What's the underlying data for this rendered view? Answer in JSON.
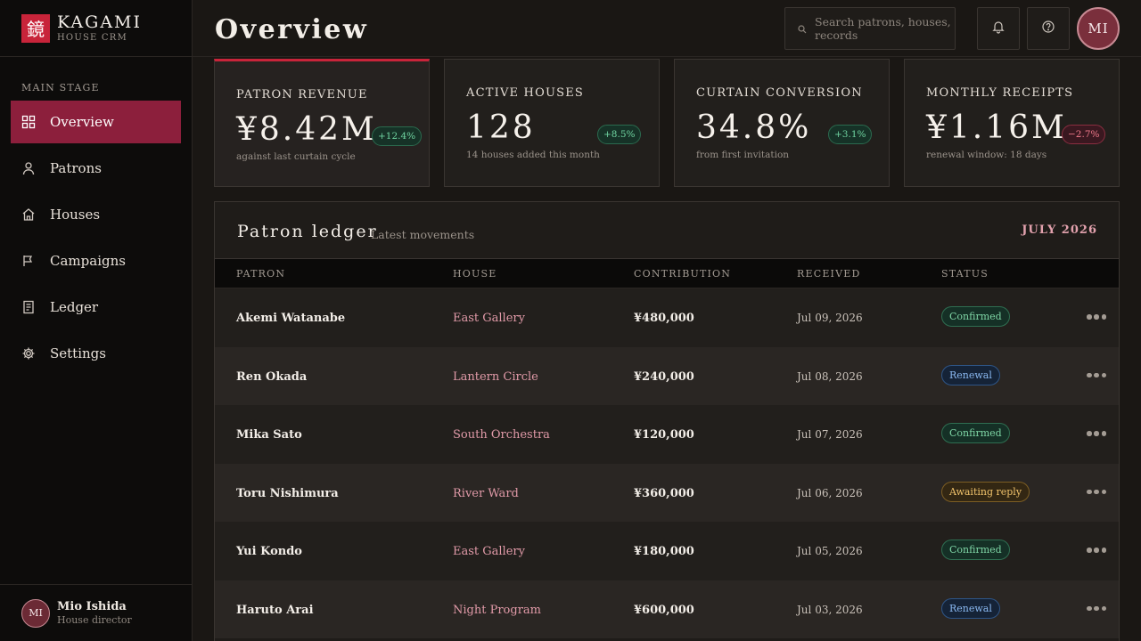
{
  "brand": {
    "mark": "鏡",
    "name": "KAGAMI",
    "sub": "HOUSE CRM"
  },
  "sidebar": {
    "section_label": "MAIN STAGE",
    "items": [
      {
        "label": "Overview",
        "icon": "grid-icon",
        "active": true
      },
      {
        "label": "Patrons",
        "icon": "user-icon",
        "active": false
      },
      {
        "label": "Houses",
        "icon": "house-icon",
        "active": false
      },
      {
        "label": "Campaigns",
        "icon": "flag-icon",
        "active": false
      },
      {
        "label": "Ledger",
        "icon": "document-icon",
        "active": false
      },
      {
        "label": "Settings",
        "icon": "gear-icon",
        "active": false
      }
    ],
    "user": {
      "initials": "MI",
      "name": "Mio Ishida",
      "role": "House director"
    }
  },
  "header": {
    "title": "Overview",
    "search_placeholder": "Search patrons, houses, records",
    "avatar_initials": "MI"
  },
  "kpis": [
    {
      "label": "PATRON REVENUE",
      "value": "¥8.42M",
      "delta": "+12.4%",
      "trend": "up",
      "note": "against last curtain cycle"
    },
    {
      "label": "ACTIVE HOUSES",
      "value": "128",
      "delta": "+8.5%",
      "trend": "up",
      "note": "14 houses added this month"
    },
    {
      "label": "CURTAIN CONVERSION",
      "value": "34.8%",
      "delta": "+3.1%",
      "trend": "up",
      "note": "from first invitation"
    },
    {
      "label": "MONTHLY RECEIPTS",
      "value": "¥1.16M",
      "delta": "−2.7%",
      "trend": "down",
      "note": "renewal window: 18 days"
    }
  ],
  "ledger": {
    "title": "Patron ledger",
    "subtitle": "Latest movements",
    "month": "JULY 2026",
    "columns": [
      "PATRON",
      "HOUSE",
      "CONTRIBUTION",
      "RECEIVED",
      "STATUS"
    ],
    "rows": [
      {
        "patron": "Akemi Watanabe",
        "house": "East Gallery",
        "amount": "¥480,000",
        "date": "Jul 09, 2026",
        "status": "Confirmed"
      },
      {
        "patron": "Ren Okada",
        "house": "Lantern Circle",
        "amount": "¥240,000",
        "date": "Jul 08, 2026",
        "status": "Renewal"
      },
      {
        "patron": "Mika Sato",
        "house": "South Orchestra",
        "amount": "¥120,000",
        "date": "Jul 07, 2026",
        "status": "Confirmed"
      },
      {
        "patron": "Toru Nishimura",
        "house": "River Ward",
        "amount": "¥360,000",
        "date": "Jul 06, 2026",
        "status": "Awaiting reply"
      },
      {
        "patron": "Yui Kondo",
        "house": "East Gallery",
        "amount": "¥180,000",
        "date": "Jul 05, 2026",
        "status": "Confirmed"
      },
      {
        "patron": "Haruto Arai",
        "house": "Night Program",
        "amount": "¥600,000",
        "date": "Jul 03, 2026",
        "status": "Renewal"
      }
    ]
  },
  "colors": {
    "accent": "#8c1f3c",
    "brand_red": "#c8243a",
    "positive": "#6fd3a0",
    "negative": "#f07a8b",
    "house_link": "#e19aa8"
  }
}
